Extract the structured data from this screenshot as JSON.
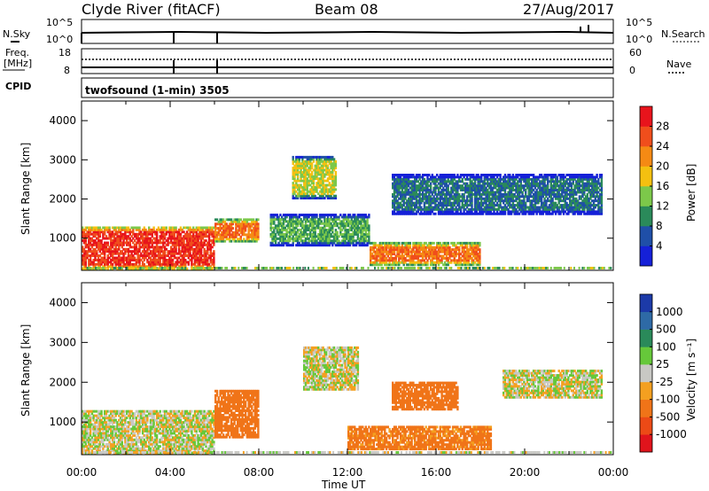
{
  "header": {
    "station": "Clyde River (fitACF)",
    "beam": "Beam 08",
    "date": "27/Aug/2017"
  },
  "summary": {
    "nsky_label": "N.Sky",
    "nsky_ticks": [
      "10^5",
      "10^0"
    ],
    "nsearch_label": "N.Search",
    "nsearch_ticks": [
      "10^5",
      "10^0"
    ],
    "freq_label_line1": "Freq.",
    "freq_label_line2": "[MHz]",
    "freq_ticks": [
      "18",
      "8"
    ],
    "nave_label": "Nave",
    "nave_ticks": [
      "60",
      "0"
    ],
    "cpid_label": "CPID",
    "cpid_text": "twofsound (1-min) 3505"
  },
  "axes": {
    "ylabel": "Slant Range [km]",
    "y_ticks": [
      "1000",
      "2000",
      "3000",
      "4000"
    ],
    "x_ticks": [
      "00:00",
      "04:00",
      "08:00",
      "12:00",
      "16:00",
      "20:00",
      "00:00"
    ],
    "xlabel": "Time UT"
  },
  "colorbars": {
    "power": {
      "label": "Power [dB]",
      "ticks": [
        "4",
        "8",
        "12",
        "16",
        "20",
        "24",
        "28"
      ],
      "colors": [
        "#1520d8",
        "#1f4fa8",
        "#2a8a5a",
        "#7cc84a",
        "#f4c010",
        "#f58a14",
        "#f04e1c",
        "#e8141c"
      ]
    },
    "velocity": {
      "label": "Velocity [m s⁻¹]",
      "ticks": [
        "1000",
        "500",
        "100",
        "25",
        "-25",
        "-100",
        "-500",
        "-1000"
      ],
      "colors": [
        "#1c3aa8",
        "#2e6aa6",
        "#2a8a5a",
        "#66c83a",
        "#c8c8c4",
        "#f4a020",
        "#f07418",
        "#ec4a16",
        "#e0141c"
      ]
    }
  },
  "chart_data": [
    {
      "type": "heatmap",
      "title": "Power",
      "xlabel": "Time UT",
      "ylabel": "Slant Range [km]",
      "x_range": [
        "00:00",
        "24:00"
      ],
      "y_range_km": [
        180,
        4500
      ],
      "color_scale": "Power [dB]",
      "approx_regions": [
        {
          "t_start": 0.0,
          "t_end": 6.0,
          "r_start": 200,
          "r_end": 1300,
          "dB": 28
        },
        {
          "t_start": 6.0,
          "t_end": 8.0,
          "r_start": 900,
          "r_end": 1500,
          "dB": 24
        },
        {
          "t_start": 8.5,
          "t_end": 13.0,
          "r_start": 800,
          "r_end": 1600,
          "dB": 12
        },
        {
          "t_start": 9.5,
          "t_end": 11.5,
          "r_start": 2000,
          "r_end": 3100,
          "dB": 16
        },
        {
          "t_start": 13.0,
          "t_end": 18.0,
          "r_start": 300,
          "r_end": 900,
          "dB": 24
        },
        {
          "t_start": 14.0,
          "t_end": 23.5,
          "r_start": 1600,
          "r_end": 2600,
          "dB": 8
        }
      ]
    },
    {
      "type": "heatmap",
      "title": "Velocity",
      "xlabel": "Time UT",
      "ylabel": "Slant Range [km]",
      "x_range": [
        "00:00",
        "24:00"
      ],
      "y_range_km": [
        180,
        4500
      ],
      "color_scale": "Velocity [m s-1]",
      "approx_regions": [
        {
          "t_start": 0.0,
          "t_end": 6.0,
          "r_start": 200,
          "r_end": 1300,
          "ms": 0
        },
        {
          "t_start": 6.0,
          "t_end": 8.0,
          "r_start": 600,
          "r_end": 1800,
          "ms": -400
        },
        {
          "t_start": 10.0,
          "t_end": 12.5,
          "r_start": 1800,
          "r_end": 2900,
          "ms": 0
        },
        {
          "t_start": 12.0,
          "t_end": 18.5,
          "r_start": 300,
          "r_end": 900,
          "ms": -150
        },
        {
          "t_start": 14.0,
          "t_end": 17.0,
          "r_start": 1300,
          "r_end": 2000,
          "ms": -400
        },
        {
          "t_start": 19.0,
          "t_end": 23.5,
          "r_start": 1600,
          "r_end": 2300,
          "ms": 0
        }
      ]
    }
  ]
}
